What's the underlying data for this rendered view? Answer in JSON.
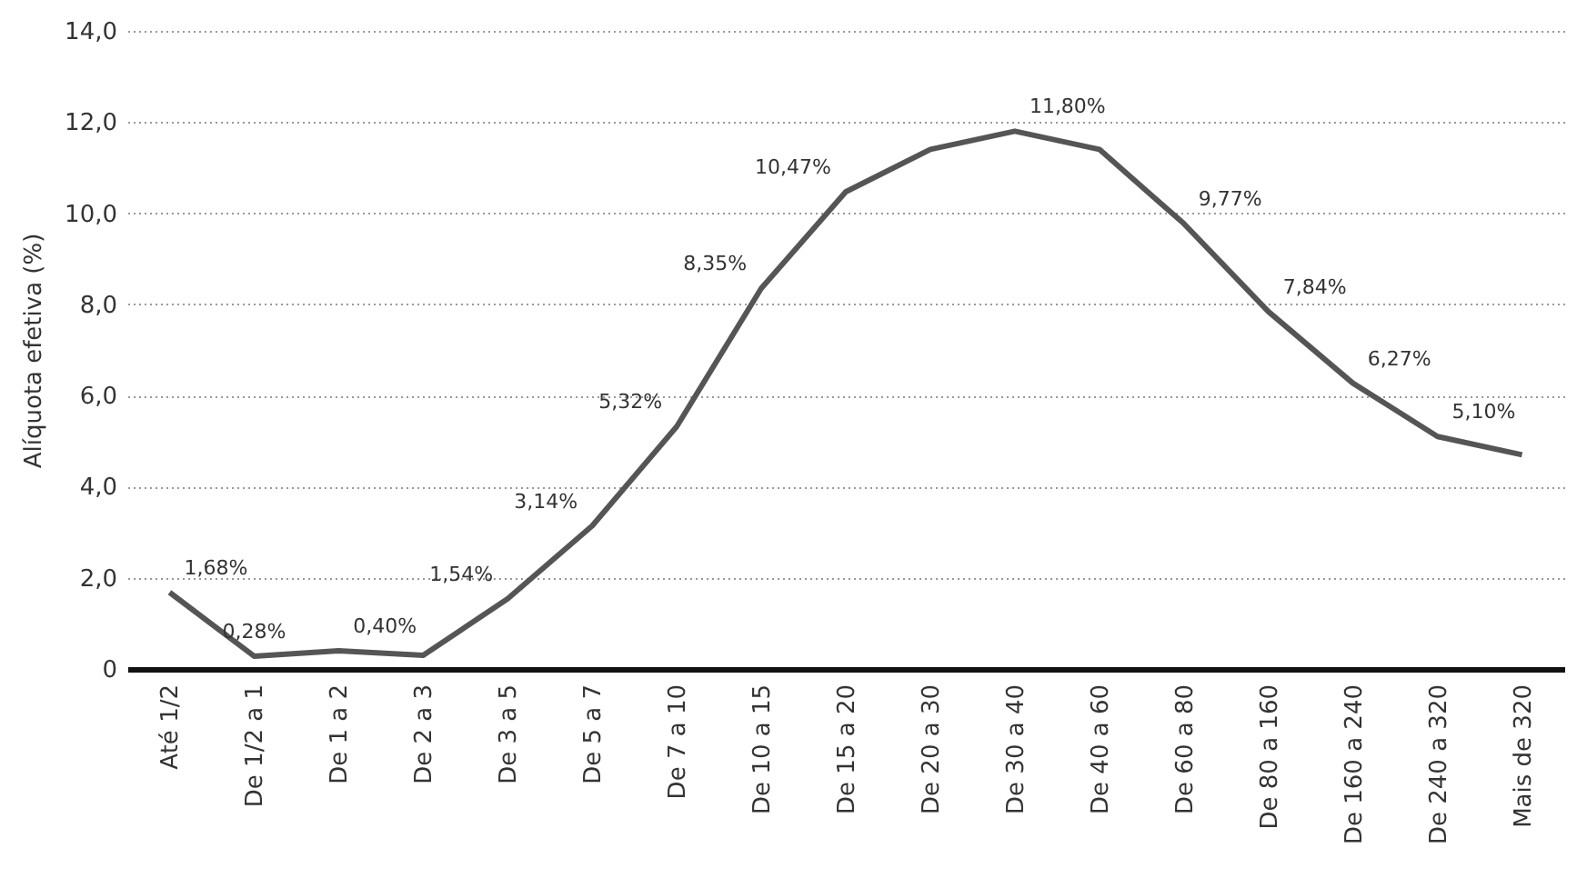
{
  "chart_data": {
    "type": "line",
    "ylabel": "Alíquota efetiva (%)",
    "categories": [
      "Até 1/2",
      "De 1/2 a 1",
      "De 1 a 2",
      "De 2 a 3",
      "De 3 a 5",
      "De 5 a 7",
      "De 7 a 10",
      "De 10 a 15",
      "De 15 a 20",
      "De 20 a 30",
      "De 30 a 40",
      "De 40 a 60",
      "De 60 a 80",
      "De 80 a 160",
      "De 160 a 240",
      "De 240 a 320",
      "Mais de 320"
    ],
    "series": [
      {
        "color": "#555555",
        "values": [
          1.68,
          0.28,
          0.4,
          0.3,
          1.54,
          3.14,
          5.32,
          8.35,
          10.47,
          11.4,
          11.8,
          11.4,
          9.77,
          7.84,
          6.27,
          5.1,
          4.7
        ],
        "value_labels": [
          "1,68%",
          "0,28%",
          "0,40%",
          null,
          "1,54%",
          "3,14%",
          "5,32%",
          "8,35%",
          "10,47%",
          null,
          "11,80%",
          null,
          "9,77%",
          "7,84%",
          "6,27%",
          "5,10%",
          null
        ]
      }
    ],
    "ylim": [
      0,
      14
    ],
    "yticks": [
      0,
      {
        "value": 2,
        "label": "2,0"
      },
      {
        "value": 4,
        "label": "4,0"
      },
      {
        "value": 6,
        "label": "6,0"
      },
      {
        "value": 8,
        "label": "8,0"
      },
      {
        "value": 10,
        "label": "10,0"
      },
      {
        "value": 12,
        "label": "12,0"
      },
      {
        "value": 14,
        "label": "14,0"
      }
    ],
    "grid": "y",
    "marker": "none",
    "line_style": "solid"
  }
}
